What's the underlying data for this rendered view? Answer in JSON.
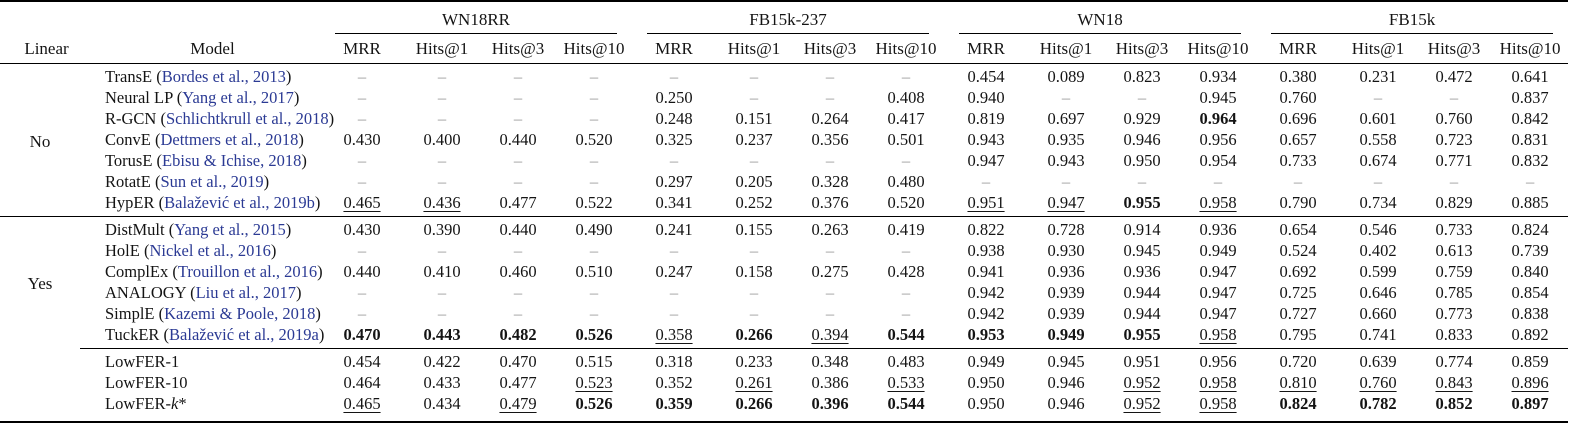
{
  "colors": {
    "citation_blue": "#2b3a94",
    "dash_gray": "#999999",
    "rule_black": "#000000"
  },
  "table": {
    "header": {
      "linear": "Linear",
      "model": "Model",
      "groups": [
        {
          "label": "WN18RR",
          "metrics": [
            "MRR",
            "Hits@1",
            "Hits@3",
            "Hits@10"
          ]
        },
        {
          "label": "FB15k-237",
          "metrics": [
            "MRR",
            "Hits@1",
            "Hits@3",
            "Hits@10"
          ]
        },
        {
          "label": "WN18",
          "metrics": [
            "MRR",
            "Hits@1",
            "Hits@3",
            "Hits@10"
          ]
        },
        {
          "label": "FB15k",
          "metrics": [
            "MRR",
            "Hits@1",
            "Hits@3",
            "Hits@10"
          ]
        }
      ]
    },
    "style_key": {
      "b": "bold",
      "u": "underline",
      "dash": "–"
    },
    "sections": [
      {
        "id": "nonlinear",
        "linear_label": "No",
        "rows": [
          {
            "model": "TransE",
            "cite": "Bordes et al., 2013",
            "values": [
              "–",
              "–",
              "–",
              "–",
              "–",
              "–",
              "–",
              "–",
              "0.454",
              "0.089",
              "0.823",
              "0.934",
              "0.380",
              "0.231",
              "0.472",
              "0.641"
            ]
          },
          {
            "model": "Neural LP",
            "cite": "Yang et al., 2017",
            "values": [
              "–",
              "–",
              "–",
              "–",
              "0.250",
              "–",
              "–",
              "0.408",
              "0.940",
              "–",
              "–",
              "0.945",
              "0.760",
              "–",
              "–",
              "0.837"
            ]
          },
          {
            "model": "R-GCN",
            "cite": "Schlichtkrull et al., 2018",
            "values": [
              "–",
              "–",
              "–",
              "–",
              "0.248",
              "0.151",
              "0.264",
              "0.417",
              "0.819",
              "0.697",
              "0.929",
              "0.964|b",
              "0.696",
              "0.601",
              "0.760",
              "0.842"
            ]
          },
          {
            "model": "ConvE",
            "cite": "Dettmers et al., 2018",
            "values": [
              "0.430",
              "0.400",
              "0.440",
              "0.520",
              "0.325",
              "0.237",
              "0.356",
              "0.501",
              "0.943",
              "0.935",
              "0.946",
              "0.956",
              "0.657",
              "0.558",
              "0.723",
              "0.831"
            ]
          },
          {
            "model": "TorusE",
            "cite": "Ebisu & Ichise, 2018",
            "values": [
              "–",
              "–",
              "–",
              "–",
              "–",
              "–",
              "–",
              "–",
              "0.947",
              "0.943",
              "0.950",
              "0.954",
              "0.733",
              "0.674",
              "0.771",
              "0.832"
            ]
          },
          {
            "model": "RotatE",
            "cite": "Sun et al., 2019",
            "values": [
              "–",
              "–",
              "–",
              "–",
              "0.297",
              "0.205",
              "0.328",
              "0.480",
              "–",
              "–",
              "–",
              "–",
              "–",
              "–",
              "–",
              "–"
            ]
          },
          {
            "model": "HypER",
            "cite": "Balažević et al., 2019b",
            "values": [
              "0.465|u",
              "0.436|u",
              "0.477",
              "0.522",
              "0.341",
              "0.252",
              "0.376",
              "0.520",
              "0.951|u",
              "0.947|u",
              "0.955|b",
              "0.958|u",
              "0.790",
              "0.734",
              "0.829",
              "0.885"
            ]
          }
        ]
      },
      {
        "id": "linear",
        "linear_label": "Yes",
        "rows": [
          {
            "model": "DistMult",
            "cite": "Yang et al., 2015",
            "values": [
              "0.430",
              "0.390",
              "0.440",
              "0.490",
              "0.241",
              "0.155",
              "0.263",
              "0.419",
              "0.822",
              "0.728",
              "0.914",
              "0.936",
              "0.654",
              "0.546",
              "0.733",
              "0.824"
            ]
          },
          {
            "model": "HolE",
            "cite": "Nickel et al., 2016",
            "values": [
              "–",
              "–",
              "–",
              "–",
              "–",
              "–",
              "–",
              "–",
              "0.938",
              "0.930",
              "0.945",
              "0.949",
              "0.524",
              "0.402",
              "0.613",
              "0.739"
            ]
          },
          {
            "model": "ComplEx",
            "cite": "Trouillon et al., 2016",
            "values": [
              "0.440",
              "0.410",
              "0.460",
              "0.510",
              "0.247",
              "0.158",
              "0.275",
              "0.428",
              "0.941",
              "0.936",
              "0.936",
              "0.947",
              "0.692",
              "0.599",
              "0.759",
              "0.840"
            ]
          },
          {
            "model": "ANALOGY",
            "cite": "Liu et al., 2017",
            "values": [
              "–",
              "–",
              "–",
              "–",
              "–",
              "–",
              "–",
              "–",
              "0.942",
              "0.939",
              "0.944",
              "0.947",
              "0.725",
              "0.646",
              "0.785",
              "0.854"
            ]
          },
          {
            "model": "SimplE",
            "cite": "Kazemi & Poole, 2018",
            "values": [
              "–",
              "–",
              "–",
              "–",
              "–",
              "–",
              "–",
              "–",
              "0.942",
              "0.939",
              "0.944",
              "0.947",
              "0.727",
              "0.660",
              "0.773",
              "0.838"
            ]
          },
          {
            "model": "TuckER",
            "cite": "Balažević et al., 2019a",
            "values": [
              "0.470|b",
              "0.443|b",
              "0.482|b",
              "0.526|b",
              "0.358|u",
              "0.266|b",
              "0.394|u",
              "0.544|b",
              "0.953|b",
              "0.949|b",
              "0.955|b",
              "0.958|u",
              "0.795",
              "0.741",
              "0.833",
              "0.892"
            ]
          }
        ]
      },
      {
        "id": "lowfer",
        "linear_label": "",
        "rows": [
          {
            "model": "LowFER-1",
            "values": [
              "0.454",
              "0.422",
              "0.470",
              "0.515",
              "0.318",
              "0.233",
              "0.348",
              "0.483",
              "0.949",
              "0.945",
              "0.951",
              "0.956",
              "0.720",
              "0.639",
              "0.774",
              "0.859"
            ]
          },
          {
            "model": "LowFER-10",
            "values": [
              "0.464",
              "0.433",
              "0.477",
              "0.523|u",
              "0.352",
              "0.261|u",
              "0.386",
              "0.533|u",
              "0.950",
              "0.946",
              "0.952|u",
              "0.958|u",
              "0.810|u",
              "0.760|u",
              "0.843|u",
              "0.896|u"
            ]
          },
          {
            "model": "LowFER-k*",
            "italic_k": true,
            "values": [
              "0.465|u",
              "0.434",
              "0.479|u",
              "0.526|b",
              "0.359|b",
              "0.266|b",
              "0.396|b",
              "0.544|b",
              "0.950",
              "0.946",
              "0.952|u",
              "0.958|u",
              "0.824|b",
              "0.782|b",
              "0.852|b",
              "0.897|b"
            ]
          }
        ]
      }
    ]
  }
}
